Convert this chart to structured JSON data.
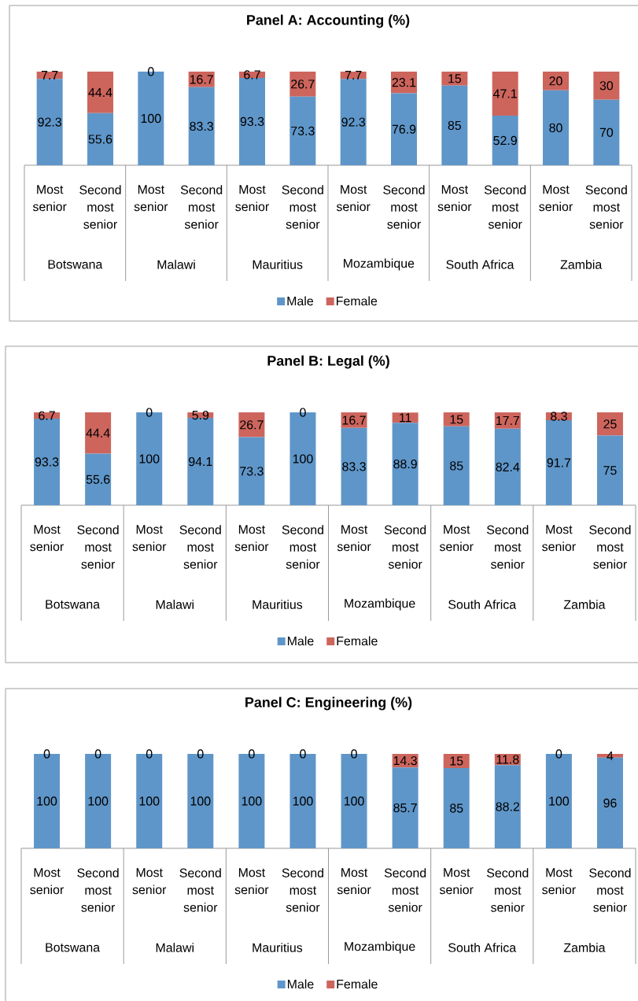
{
  "chart_data": [
    {
      "type": "bar",
      "title": "Panel A: Accounting (%)",
      "stacked": true,
      "data_labels": true,
      "legend": "bottom",
      "categories": [
        "Most senior",
        "Second most senior",
        "Most senior",
        "Second most senior",
        "Most senior",
        "Second most senior",
        "Most senior",
        "Second most senior",
        "Most senior",
        "Second most senior",
        "Most senior",
        "Second most senior"
      ],
      "annotations": [
        "Botswana",
        "Malawi",
        "Mauritius",
        "Mozambique",
        "South Africa",
        "Zambia"
      ],
      "series": [
        {
          "name": "Male",
          "color": "#5F96C9",
          "values": [
            92.3,
            55.6,
            100,
            83.3,
            93.3,
            73.3,
            92.3,
            76.9,
            85,
            52.9,
            80,
            70
          ]
        },
        {
          "name": "Female",
          "color": "#CD655D",
          "values": [
            7.7,
            44.4,
            0,
            16.7,
            6.7,
            26.7,
            7.7,
            23.1,
            15,
            47.1,
            20,
            30
          ]
        }
      ]
    },
    {
      "type": "bar",
      "title": "Panel B: Legal (%)",
      "stacked": true,
      "data_labels": true,
      "legend": "bottom",
      "categories": [
        "Most senior",
        "Second most senior",
        "Most senior",
        "Second most senior",
        "Most senior",
        "Second most senior",
        "Most senior",
        "Second most senior",
        "Most senior",
        "Second most senior",
        "Most senior",
        "Second most senior"
      ],
      "annotations": [
        "Botswana",
        "Malawi",
        "Mauritius",
        "Mozambique",
        "South Africa",
        "Zambia"
      ],
      "series": [
        {
          "name": "Male",
          "color": "#5F96C9",
          "values": [
            93.3,
            55.6,
            100,
            94.1,
            73.3,
            100,
            83.3,
            88.9,
            85,
            82.4,
            91.7,
            75
          ]
        },
        {
          "name": "Female",
          "color": "#CD655D",
          "values": [
            6.7,
            44.4,
            0,
            5.9,
            26.7,
            0,
            16.7,
            11,
            15,
            17.7,
            8.3,
            25
          ]
        }
      ]
    },
    {
      "type": "bar",
      "title": "Panel C: Engineering (%)",
      "stacked": true,
      "data_labels": true,
      "legend": "bottom",
      "categories": [
        "Most senior",
        "Second most senior",
        "Most senior",
        "Second most senior",
        "Most senior",
        "Second most senior",
        "Most senior",
        "Second most senior",
        "Most senior",
        "Second most senior",
        "Most senior",
        "Second most senior"
      ],
      "annotations": [
        "Botswana",
        "Malawi",
        "Mauritius",
        "Mozambique",
        "South Africa",
        "Zambia"
      ],
      "series": [
        {
          "name": "Male",
          "color": "#5F96C9",
          "values": [
            100,
            100,
            100,
            100,
            100,
            100,
            100,
            85.7,
            85,
            88.2,
            100,
            96
          ]
        },
        {
          "name": "Female",
          "color": "#CD655D",
          "values": [
            0,
            0,
            0,
            0,
            0,
            0,
            0,
            14.3,
            15,
            11.8,
            0,
            4
          ]
        }
      ]
    }
  ]
}
